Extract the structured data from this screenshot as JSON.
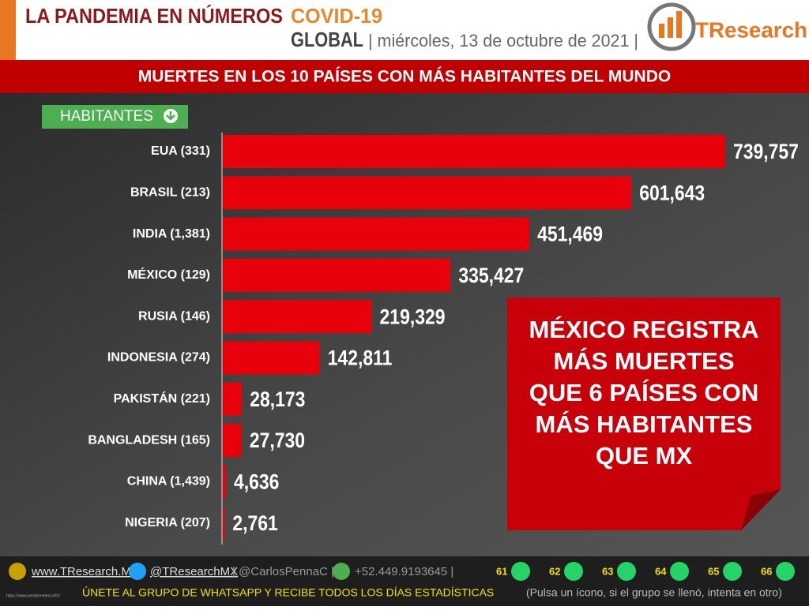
{
  "header": {
    "title": "LA PANDEMIA EN NÚMEROS",
    "highlight": "COVID-19",
    "scope": "GLOBAL",
    "date": "| miércoles, 13 de octubre de 2021 |",
    "logo": "TResearch"
  },
  "banner": "MUERTES EN LOS 10 PAÍSES CON MÁS HABITANTES DEL MUNDO",
  "sort_button": "HABITANTES",
  "callout": [
    "MÉXICO REGISTRA",
    "MÁS MUERTES",
    "QUE 6 PAÍSES CON",
    "MÁS HABITANTES",
    "QUE MX"
  ],
  "footer": {
    "website": "www.TResearch.Mx",
    "twitter": "@TResearchMX",
    "twitter2": "| @CarlosPennaC |",
    "phone": "+52.449.9193645 |",
    "groups": [
      "61",
      "62",
      "63",
      "64",
      "65",
      "66"
    ],
    "invite": "ÚNETE AL GRUPO DE WHATSAPP Y RECIBE TODOS LOS DÍAS ESTADÍSTICAS",
    "note": "(Pulsa un ícono, si el grupo se llenó, intenta en otro)",
    "source": "https://www.worldometers.info/"
  },
  "chart_data": {
    "type": "hbar",
    "color": "#e8000b",
    "categories": [
      "EUA (331)",
      "BRASIL (213)",
      "INDIA (1,381)",
      "MÉXICO (129)",
      "RUSIA (146)",
      "INDONESIA (274)",
      "PAKISTÁN (221)",
      "BANGLADESH (165)",
      "CHINA (1,439)",
      "NIGERIA (207)"
    ],
    "values": [
      739757,
      601643,
      451469,
      335427,
      219329,
      142811,
      28173,
      27730,
      4636,
      2761
    ],
    "value_labels": [
      "739,757",
      "601,643",
      "451,469",
      "335,427",
      "219,329",
      "142,811",
      "28,173",
      "27,730",
      "4,636",
      "2,761"
    ]
  }
}
